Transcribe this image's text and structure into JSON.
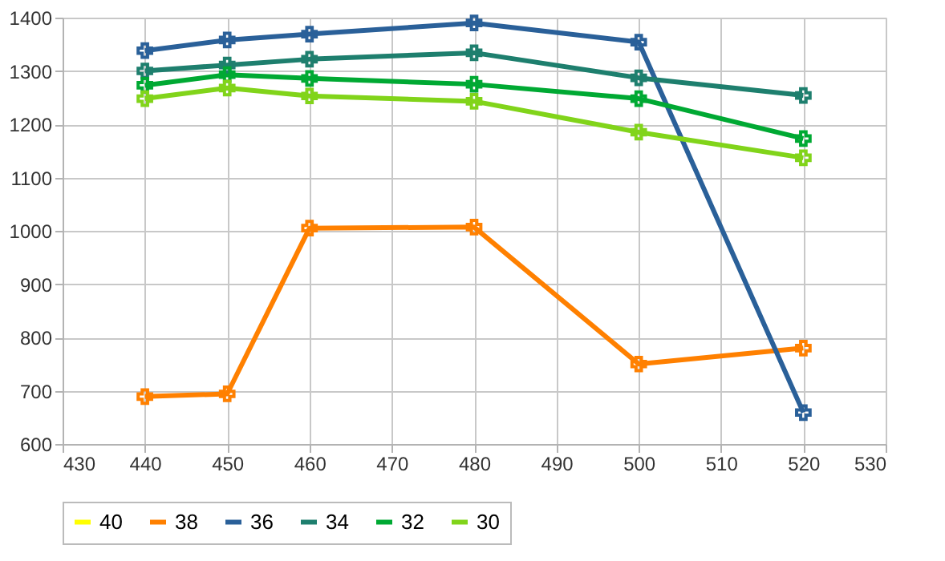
{
  "chart_data": {
    "type": "line",
    "x": [
      440,
      450,
      460,
      480,
      500,
      520
    ],
    "series": [
      {
        "name": "40",
        "color": "#ffff00",
        "values": [
          null,
          null,
          null,
          null,
          null,
          null
        ]
      },
      {
        "name": "38",
        "color": "#ff8000",
        "values": [
          689,
          694,
          1005,
          1007,
          750,
          780
        ]
      },
      {
        "name": "36",
        "color": "#2a6099",
        "values": [
          1338,
          1358,
          1369,
          1390,
          1354,
          659
        ]
      },
      {
        "name": "34",
        "color": "#1e7f6e",
        "values": [
          1300,
          1311,
          1322,
          1334,
          1287,
          1254
        ]
      },
      {
        "name": "32",
        "color": "#00a933",
        "values": [
          1273,
          1293,
          1286,
          1275,
          1248,
          1173
        ]
      },
      {
        "name": "30",
        "color": "#81d41a",
        "values": [
          1248,
          1268,
          1253,
          1243,
          1185,
          1137
        ]
      }
    ],
    "xlim": [
      430,
      530
    ],
    "xticks": [
      430,
      440,
      450,
      460,
      470,
      480,
      490,
      500,
      510,
      520,
      530
    ],
    "ylim": [
      600,
      1400
    ],
    "yticks": [
      600,
      700,
      800,
      900,
      1000,
      1100,
      1200,
      1300,
      1400
    ],
    "grid": true,
    "legend": "bottom",
    "marker": "cross",
    "line_style": "solid"
  }
}
